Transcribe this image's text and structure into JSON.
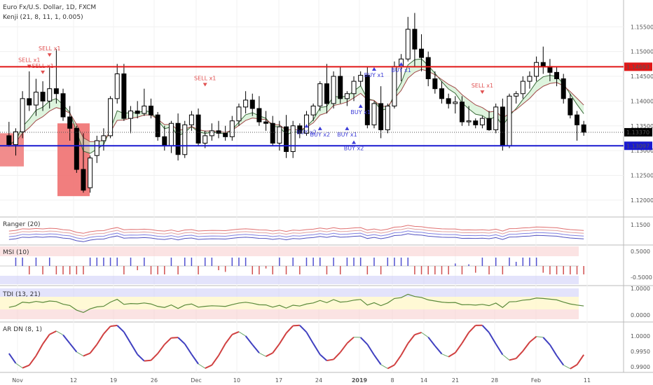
{
  "header": {
    "line1": "Euro Fx/U.S. Dollar, 1D, FXCM",
    "line2": "Kenji (21, 8, 11, 1, 0.005)"
  },
  "panels": {
    "ranger": "Ranger (20)",
    "msi": "MSI (10)",
    "tdi": "TDI (13, 21)",
    "ardn": "AR DN (8, 1)"
  },
  "price_labels": {
    "resistance": "1.14693",
    "current": "1.13370",
    "support": "1.13097"
  },
  "colors": {
    "up": "#ffffff",
    "down": "#000000",
    "resistance": "#e01818",
    "support": "#1a1ad0",
    "current": "#000000",
    "sell": "#e05050",
    "buy": "#3a3ad8"
  },
  "chart_data": {
    "type": "candlestick",
    "x_labels": [
      "Nov",
      "12",
      "19",
      "26",
      "Dec",
      "10",
      "17",
      "24",
      "2019",
      "8",
      "14",
      "21",
      "28",
      "Feb",
      "11"
    ],
    "price_axis": [
      "1.15500",
      "1.15000",
      "1.14500",
      "1.14000",
      "1.13500",
      "1.13000",
      "1.12500",
      "1.12000"
    ],
    "ylim": [
      1.118,
      1.159
    ],
    "resistance": 1.14693,
    "support": 1.13097,
    "last": 1.1337,
    "candles": [
      [
        1.133,
        1.1358,
        1.1308,
        1.1312
      ],
      [
        1.1312,
        1.1345,
        1.129,
        1.1338
      ],
      [
        1.1338,
        1.142,
        1.1325,
        1.1405
      ],
      [
        1.1405,
        1.146,
        1.138,
        1.1392
      ],
      [
        1.1392,
        1.1445,
        1.137,
        1.1418
      ],
      [
        1.1418,
        1.144,
        1.138,
        1.14
      ],
      [
        1.14,
        1.147,
        1.1385,
        1.1425
      ],
      [
        1.1425,
        1.1505,
        1.1395,
        1.1415
      ],
      [
        1.1415,
        1.1425,
        1.136,
        1.1368
      ],
      [
        1.1368,
        1.139,
        1.132,
        1.1345
      ],
      [
        1.1345,
        1.135,
        1.1255,
        1.1262
      ],
      [
        1.1262,
        1.1335,
        1.1215,
        1.122
      ],
      [
        1.1225,
        1.129,
        1.1215,
        1.1285
      ],
      [
        1.129,
        1.133,
        1.1275,
        1.132
      ],
      [
        1.132,
        1.1345,
        1.13,
        1.133
      ],
      [
        1.133,
        1.141,
        1.1325,
        1.1405
      ],
      [
        1.1405,
        1.1475,
        1.1395,
        1.1455
      ],
      [
        1.1455,
        1.1475,
        1.136,
        1.1365
      ],
      [
        1.1365,
        1.139,
        1.1335,
        1.138
      ],
      [
        1.138,
        1.14,
        1.1365,
        1.1375
      ],
      [
        1.1375,
        1.1425,
        1.137,
        1.139
      ],
      [
        1.139,
        1.1405,
        1.1365,
        1.1372
      ],
      [
        1.1372,
        1.1378,
        1.132,
        1.1328
      ],
      [
        1.1328,
        1.135,
        1.13,
        1.131
      ],
      [
        1.131,
        1.136,
        1.1295,
        1.1355
      ],
      [
        1.1355,
        1.1375,
        1.128,
        1.1292
      ],
      [
        1.1292,
        1.136,
        1.1285,
        1.1352
      ],
      [
        1.1352,
        1.138,
        1.134,
        1.1372
      ],
      [
        1.1372,
        1.1385,
        1.131,
        1.1315
      ],
      [
        1.1315,
        1.134,
        1.1305,
        1.133
      ],
      [
        1.133,
        1.1355,
        1.132,
        1.134
      ],
      [
        1.134,
        1.136,
        1.1325,
        1.1335
      ],
      [
        1.1335,
        1.135,
        1.132,
        1.1328
      ],
      [
        1.1328,
        1.137,
        1.132,
        1.136
      ],
      [
        1.136,
        1.1395,
        1.135,
        1.1388
      ],
      [
        1.1388,
        1.142,
        1.1375,
        1.1402
      ],
      [
        1.1402,
        1.1415,
        1.137,
        1.1385
      ],
      [
        1.1385,
        1.141,
        1.135,
        1.1358
      ],
      [
        1.1358,
        1.138,
        1.134,
        1.1355
      ],
      [
        1.1355,
        1.137,
        1.131,
        1.1315
      ],
      [
        1.1315,
        1.136,
        1.13,
        1.1348
      ],
      [
        1.1348,
        1.1372,
        1.1285,
        1.1298
      ],
      [
        1.1298,
        1.136,
        1.1285,
        1.135
      ],
      [
        1.135,
        1.1355,
        1.1325,
        1.1335
      ],
      [
        1.1335,
        1.138,
        1.133,
        1.1372
      ],
      [
        1.1372,
        1.1395,
        1.136,
        1.139
      ],
      [
        1.139,
        1.144,
        1.138,
        1.1435
      ],
      [
        1.1435,
        1.1475,
        1.1375,
        1.1395
      ],
      [
        1.1395,
        1.146,
        1.1385,
        1.145
      ],
      [
        1.145,
        1.147,
        1.1395,
        1.1405
      ],
      [
        1.1405,
        1.142,
        1.139,
        1.1415
      ],
      [
        1.1415,
        1.145,
        1.14,
        1.144
      ],
      [
        1.144,
        1.146,
        1.143,
        1.1452
      ],
      [
        1.1452,
        1.147,
        1.1345,
        1.1352
      ],
      [
        1.1352,
        1.14,
        1.1345,
        1.1395
      ],
      [
        1.1395,
        1.143,
        1.1325,
        1.1342
      ],
      [
        1.1342,
        1.1395,
        1.1335,
        1.139
      ],
      [
        1.139,
        1.148,
        1.1385,
        1.147
      ],
      [
        1.147,
        1.1495,
        1.144,
        1.1485
      ],
      [
        1.1485,
        1.157,
        1.148,
        1.1545
      ],
      [
        1.1545,
        1.1578,
        1.147,
        1.1505
      ],
      [
        1.1505,
        1.1535,
        1.146,
        1.1488
      ],
      [
        1.1488,
        1.15,
        1.143,
        1.1445
      ],
      [
        1.1445,
        1.146,
        1.1415,
        1.1425
      ],
      [
        1.1425,
        1.144,
        1.1395,
        1.1405
      ],
      [
        1.1405,
        1.1415,
        1.1385,
        1.1395
      ],
      [
        1.1395,
        1.141,
        1.1375,
        1.1398
      ],
      [
        1.1398,
        1.141,
        1.135,
        1.1358
      ],
      [
        1.1358,
        1.139,
        1.135,
        1.136
      ],
      [
        1.136,
        1.1365,
        1.1345,
        1.1352
      ],
      [
        1.1352,
        1.137,
        1.1345,
        1.1365
      ],
      [
        1.1365,
        1.138,
        1.134,
        1.1342
      ],
      [
        1.1342,
        1.1395,
        1.1335,
        1.1388
      ],
      [
        1.1388,
        1.1405,
        1.13,
        1.131
      ],
      [
        1.131,
        1.1415,
        1.1305,
        1.141
      ],
      [
        1.141,
        1.142,
        1.1395,
        1.1415
      ],
      [
        1.1415,
        1.145,
        1.1405,
        1.144
      ],
      [
        1.144,
        1.146,
        1.1425,
        1.145
      ],
      [
        1.145,
        1.149,
        1.144,
        1.1478
      ],
      [
        1.1478,
        1.151,
        1.1455,
        1.147
      ],
      [
        1.147,
        1.1485,
        1.144,
        1.1458
      ],
      [
        1.1458,
        1.147,
        1.143,
        1.1445
      ],
      [
        1.1445,
        1.1455,
        1.1395,
        1.1405
      ],
      [
        1.1405,
        1.1415,
        1.1365,
        1.1372
      ],
      [
        1.1372,
        1.138,
        1.132,
        1.1352
      ],
      [
        1.1352,
        1.136,
        1.133,
        1.1337
      ]
    ],
    "signals": [
      {
        "text": "SELL x1",
        "price": 1.1505,
        "bar": 6,
        "side": "sell"
      },
      {
        "text": "SELL x1",
        "price": 1.1482,
        "bar": 3,
        "side": "sell"
      },
      {
        "text": "SELL x1",
        "price": 1.147,
        "bar": 5,
        "side": "sell"
      },
      {
        "text": "SELL x1",
        "price": 1.1445,
        "bar": 29,
        "side": "sell"
      },
      {
        "text": "SELL x1",
        "price": 1.143,
        "bar": 70,
        "side": "sell"
      },
      {
        "text": "BUY x1",
        "price": 1.146,
        "bar": 54,
        "side": "buy"
      },
      {
        "text": "BUY x1",
        "price": 1.147,
        "bar": 58,
        "side": "buy"
      },
      {
        "text": "BUY x1",
        "price": 1.1385,
        "bar": 52,
        "side": "buy"
      },
      {
        "text": "BUY x1",
        "price": 1.134,
        "bar": 50,
        "side": "buy"
      },
      {
        "text": "BUY x2",
        "price": 1.1345,
        "bar": 44,
        "side": "buy"
      },
      {
        "text": "BUY x2",
        "price": 1.134,
        "bar": 46,
        "side": "buy"
      },
      {
        "text": "BUY x2",
        "price": 1.1312,
        "bar": 51,
        "side": "buy"
      }
    ],
    "panels_axes": {
      "ranger": [
        "1.1500"
      ],
      "msi": [
        "0.5000",
        "-0.5000"
      ],
      "tdi": [
        "1.0000",
        "0.0000"
      ],
      "ardn": [
        "1.0000",
        "0.9950",
        "0.9900"
      ]
    }
  }
}
